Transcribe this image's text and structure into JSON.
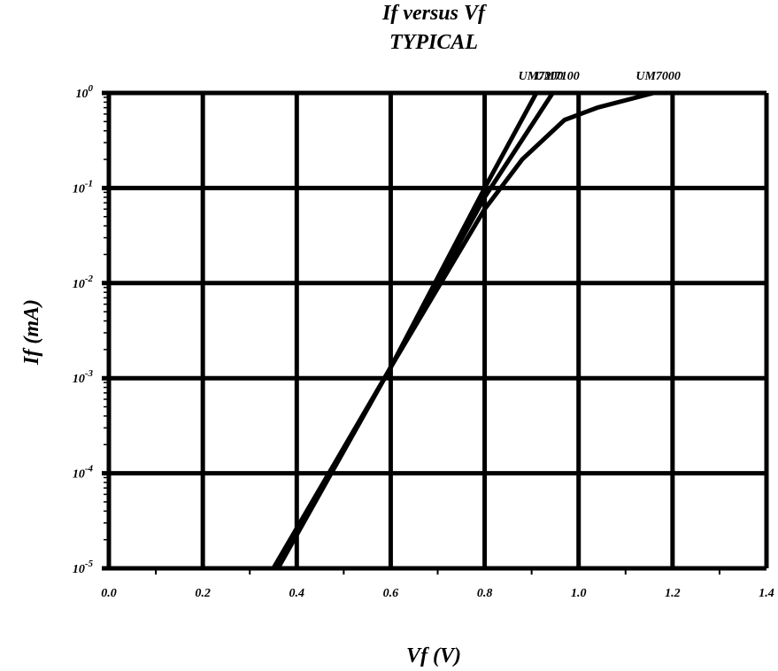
{
  "chart_data": {
    "type": "line",
    "title": "If versus Vf",
    "subtitle": "TYPICAL",
    "xlabel": "Vf (V)",
    "ylabel": "If (mA)",
    "xlim": [
      0.0,
      1.4
    ],
    "ylim_exponents": [
      -5,
      0
    ],
    "yscale": "log",
    "grid": true,
    "legend": "inline labels at top of curves",
    "x_ticks": [
      "0.0",
      "0.2",
      "0.4",
      "0.6",
      "0.8",
      "1.0",
      "1.2",
      "1.4"
    ],
    "y_ticks": [
      {
        "base": "10",
        "exp": "0"
      },
      {
        "base": "10",
        "exp": "-1"
      },
      {
        "base": "10",
        "exp": "-2"
      },
      {
        "base": "10",
        "exp": "-3"
      },
      {
        "base": "10",
        "exp": "-4"
      },
      {
        "base": "10",
        "exp": "-5"
      }
    ],
    "series": [
      {
        "name": "UM7200",
        "points": [
          [
            0.35,
            1e-05
          ],
          [
            0.6,
            0.0013
          ],
          [
            0.8,
            0.1
          ],
          [
            0.91,
            1.0
          ]
        ]
      },
      {
        "name": "UM7100",
        "points": [
          [
            0.355,
            1e-05
          ],
          [
            0.6,
            0.0013
          ],
          [
            0.8,
            0.08
          ],
          [
            0.945,
            1.0
          ]
        ]
      },
      {
        "name": "UM7000",
        "points": [
          [
            0.36,
            1e-05
          ],
          [
            0.6,
            0.0013
          ],
          [
            0.8,
            0.06
          ],
          [
            0.88,
            0.2
          ],
          [
            0.97,
            0.52
          ],
          [
            1.04,
            0.7
          ],
          [
            1.16,
            1.0
          ]
        ]
      }
    ]
  }
}
